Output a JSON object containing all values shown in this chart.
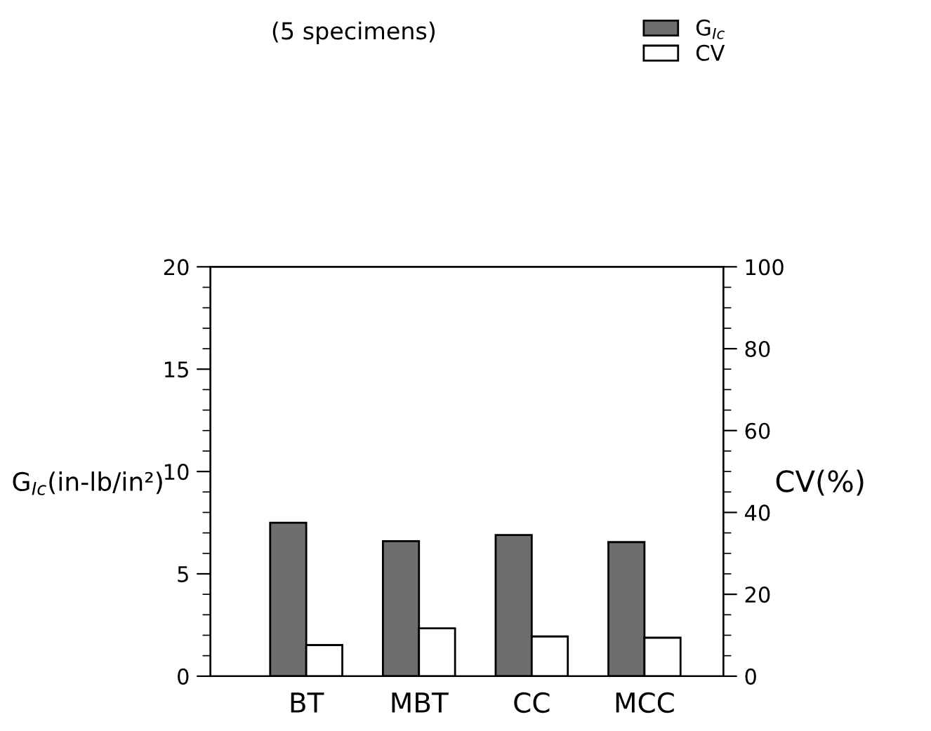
{
  "chart_data": {
    "type": "bar",
    "title": "(5 specimens)",
    "categories": [
      "BT",
      "MBT",
      "CC",
      "MCC"
    ],
    "series": [
      {
        "name": "G$_{Ic}$",
        "color": "#6e6e6e",
        "values": [
          7.5,
          6.6,
          6.9,
          6.55
        ]
      },
      {
        "name": "CV",
        "color": "#ffffff",
        "axis": "y2",
        "values": [
          7.6,
          11.7,
          9.7,
          9.4
        ]
      }
    ],
    "ylabel": "G$_{Ic}$(in-lb/in²)",
    "y2label": "CV(%)",
    "ylim": [
      0,
      20
    ],
    "yticks": [
      0,
      5,
      10,
      15,
      20
    ],
    "y2lim": [
      0,
      100
    ],
    "y2ticks": [
      0,
      20,
      40,
      60,
      80,
      100
    ],
    "grid": false,
    "legend": "top right"
  }
}
